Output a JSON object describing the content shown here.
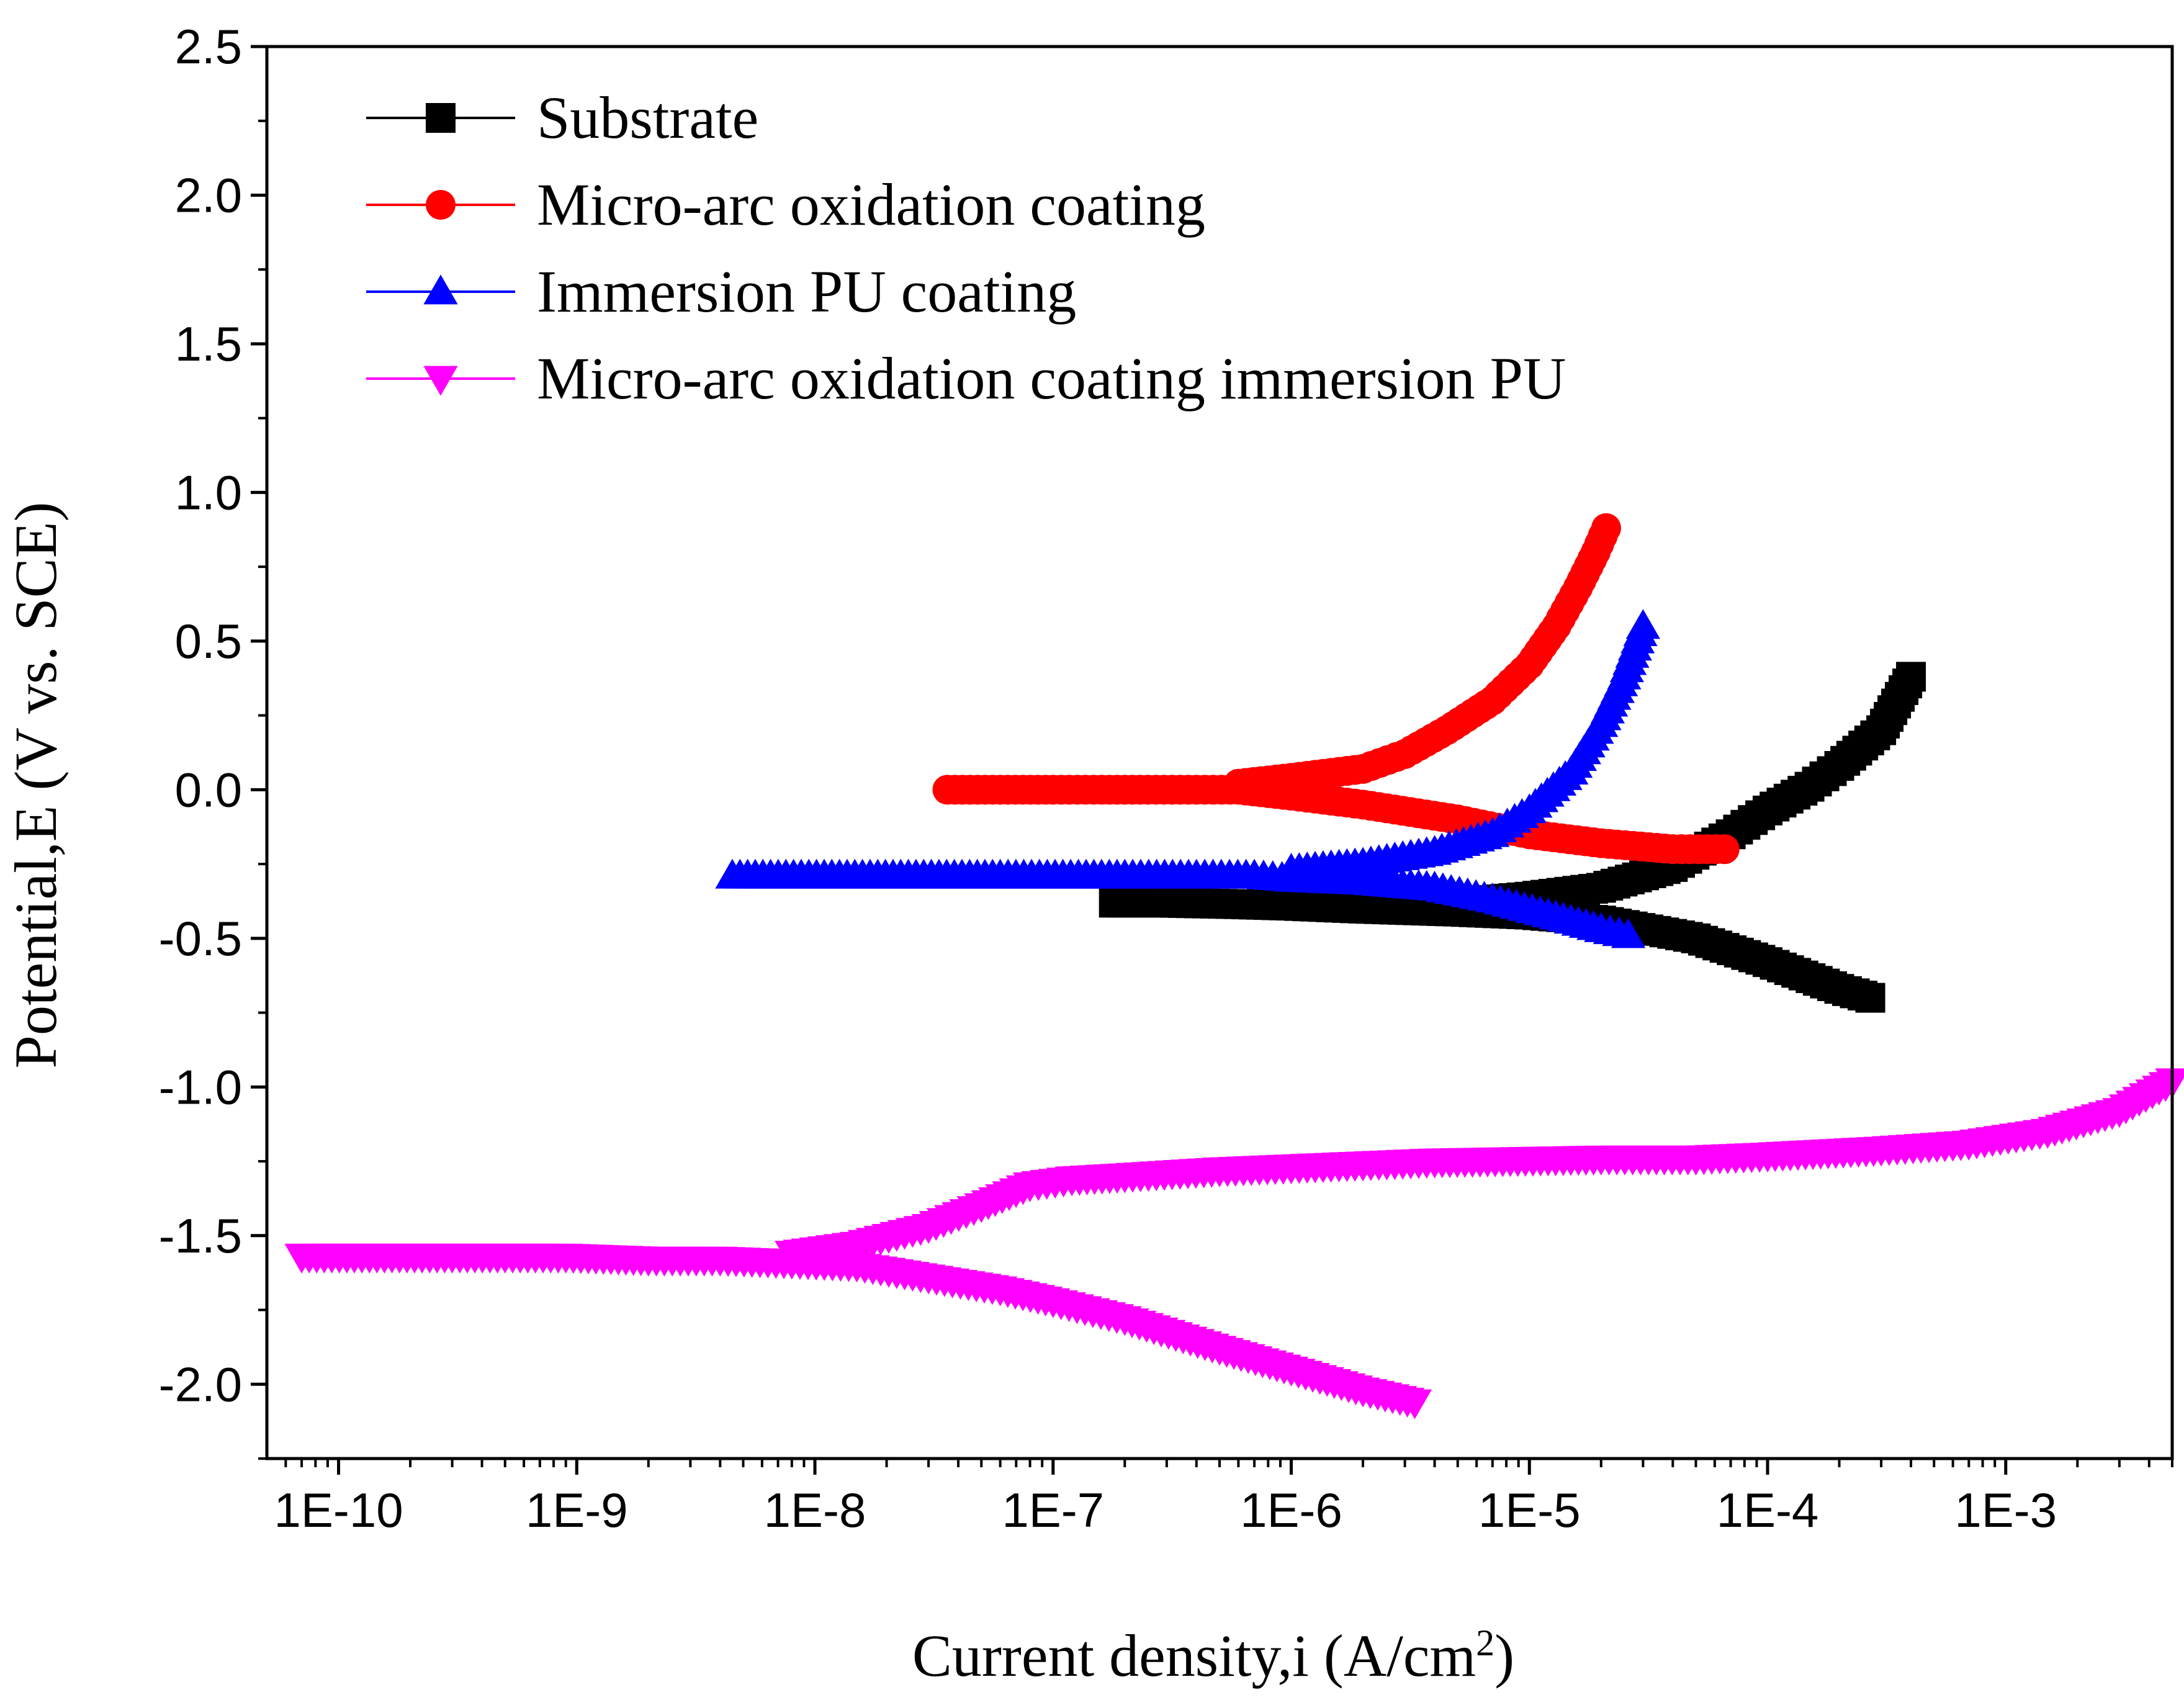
{
  "chart_data": {
    "type": "line",
    "title": "",
    "xlabel": "Current density,i (A/cm",
    "xlabel_sup": "2",
    "xlabel_end": ")",
    "ylabel": "Potential,E (V vs. SCE)",
    "xscale": "log",
    "xlim": [
      5e-11,
      0.005
    ],
    "ylim": [
      -2.25,
      2.5
    ],
    "x_ticks": [
      {
        "value": 1e-10,
        "label": "1E-10"
      },
      {
        "value": 1e-09,
        "label": "1E-9"
      },
      {
        "value": 1e-08,
        "label": "1E-8"
      },
      {
        "value": 1e-07,
        "label": "1E-7"
      },
      {
        "value": 1e-06,
        "label": "1E-6"
      },
      {
        "value": 1e-05,
        "label": "1E-5"
      },
      {
        "value": 0.0001,
        "label": "1E-4"
      },
      {
        "value": 0.001,
        "label": "1E-3"
      }
    ],
    "y_ticks": [
      {
        "value": 2.5,
        "label": "2.5"
      },
      {
        "value": 2.0,
        "label": "2.0"
      },
      {
        "value": 1.5,
        "label": "1.5"
      },
      {
        "value": 1.0,
        "label": "1.0"
      },
      {
        "value": 0.5,
        "label": "0.5"
      },
      {
        "value": 0.0,
        "label": "0.0"
      },
      {
        "value": -0.5,
        "label": "-0.5"
      },
      {
        "value": -1.0,
        "label": "-1.0"
      },
      {
        "value": -1.5,
        "label": "-1.5"
      },
      {
        "value": -2.0,
        "label": "-2.0"
      }
    ],
    "legend_position": "top-left",
    "series": [
      {
        "name": "Substrate",
        "color": "#000000",
        "marker": "square",
        "branches": [
          {
            "x": [
              1.8e-07,
              3e-07,
              6e-07,
              1e-06,
              2e-06,
              5e-06,
              1e-05,
              2e-05,
              5e-05,
              0.0001,
              0.0002,
              0.00027
            ],
            "y": [
              -0.38,
              -0.38,
              -0.385,
              -0.39,
              -0.4,
              -0.41,
              -0.42,
              -0.44,
              -0.5,
              -0.58,
              -0.67,
              -0.7
            ]
          },
          {
            "x": [
              5e-06,
              1e-05,
              2e-05,
              4e-05,
              7e-05,
              0.0001,
              0.00015,
              0.0002,
              0.0003,
              0.0004
            ],
            "y": [
              -0.38,
              -0.36,
              -0.33,
              -0.26,
              -0.15,
              -0.07,
              0.01,
              0.08,
              0.2,
              0.38
            ]
          }
        ]
      },
      {
        "name": "Micro-arc oxidation coating",
        "color": "#ff0000",
        "marker": "circle",
        "branches": [
          {
            "x": [
              3.6e-08,
              1e-07,
              1.6e-07,
              2.5e-07,
              4e-07,
              6e-07,
              1e-06,
              2e-06,
              5e-06,
              1e-05,
              2e-05,
              4e-05,
              6.6e-05
            ],
            "y": [
              0.0,
              0.0,
              0.0,
              0.0,
              0.0,
              0.0,
              -0.02,
              -0.05,
              -0.1,
              -0.15,
              -0.18,
              -0.2,
              -0.2
            ]
          },
          {
            "x": [
              6e-07,
              1e-06,
              2e-06,
              3e-06,
              4.5e-06,
              7e-06,
              1e-05,
              1.3e-05,
              1.6e-05,
              1.9e-05,
              2.1e-05
            ],
            "y": [
              0.02,
              0.04,
              0.07,
              0.12,
              0.2,
              0.3,
              0.42,
              0.55,
              0.68,
              0.8,
              0.88
            ]
          }
        ]
      },
      {
        "name": "Immersion PU coating",
        "color": "#0000ff",
        "marker": "triangle-up",
        "branches": [
          {
            "x": [
              4.5e-09,
              6e-08,
              1.1e-07,
              2e-07,
              4e-07,
              7e-07,
              1e-06,
              2e-06,
              4e-06,
              7e-06,
              1.2e-05,
              2e-05,
              2.6e-05
            ],
            "y": [
              -0.29,
              -0.29,
              -0.29,
              -0.29,
              -0.29,
              -0.29,
              -0.3,
              -0.31,
              -0.33,
              -0.37,
              -0.42,
              -0.47,
              -0.49
            ]
          },
          {
            "x": [
              1e-06,
              2e-06,
              4e-06,
              7e-06,
              1e-05,
              1.5e-05,
              2e-05,
              2.5e-05,
              3e-05
            ],
            "y": [
              -0.27,
              -0.25,
              -0.21,
              -0.15,
              -0.07,
              0.06,
              0.22,
              0.38,
              0.55
            ]
          }
        ]
      },
      {
        "name": "Micro-arc oxidation coating immersion PU",
        "color": "#ff00ff",
        "marker": "triangle-down",
        "branches": [
          {
            "x": [
              7e-11,
              3e-10,
              5e-10,
              9e-10,
              2e-09,
              4e-09,
              8e-09,
              1.5e-08,
              3e-08,
              6e-08,
              1e-07,
              2e-07,
              5e-07,
              1e-06,
              2e-06,
              3.3e-06
            ],
            "y": [
              -1.57,
              -1.57,
              -1.57,
              -1.57,
              -1.58,
              -1.58,
              -1.59,
              -1.6,
              -1.64,
              -1.68,
              -1.72,
              -1.78,
              -1.88,
              -1.95,
              -2.02,
              -2.06
            ]
          },
          {
            "x": [
              8e-09,
              1.5e-08,
              3e-08,
              5e-08,
              8e-08,
              1.2e-07,
              2e-07,
              5e-07,
              1e-06,
              2e-06,
              4e-06,
              2e-05,
              5e-05,
              0.0001,
              0.0003,
              0.0007,
              0.0015,
              0.003,
              0.005
            ],
            "y": [
              -1.56,
              -1.53,
              -1.47,
              -1.4,
              -1.33,
              -1.31,
              -1.3,
              -1.28,
              -1.27,
              -1.26,
              -1.25,
              -1.24,
              -1.24,
              -1.23,
              -1.21,
              -1.19,
              -1.15,
              -1.08,
              -0.98
            ]
          }
        ]
      }
    ]
  }
}
